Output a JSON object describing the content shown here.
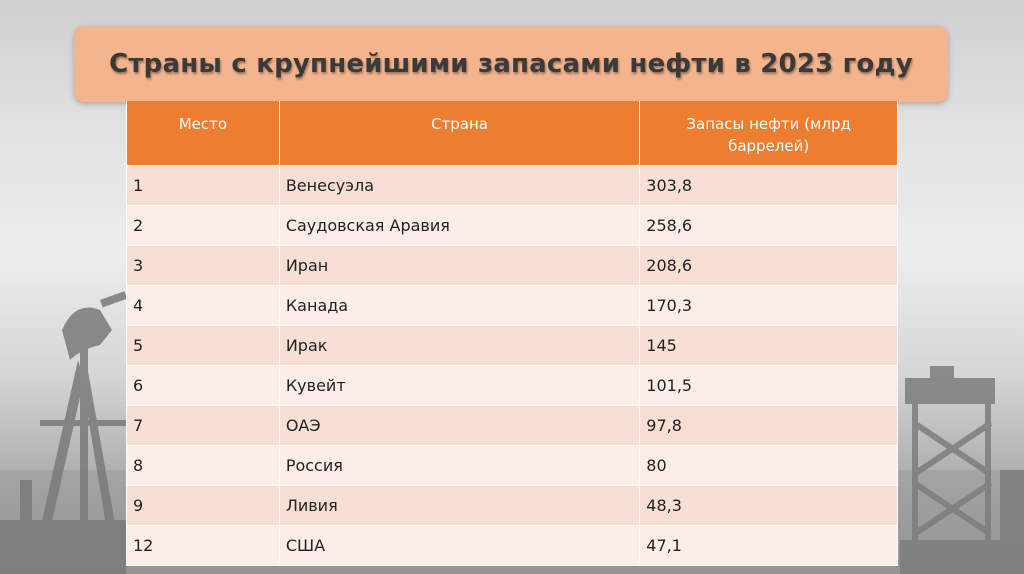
{
  "slide": {
    "title": "Страны с крупнейшими запасами нефти в 2023 году"
  },
  "table": {
    "headers": [
      "Место",
      "Страна",
      "Запасы нефти (млрд баррелей)"
    ],
    "rows": [
      {
        "rank": "1",
        "country": "Венесуэла",
        "reserves": "303,8"
      },
      {
        "rank": "2",
        "country": "Саудовская Аравия",
        "reserves": "258,6"
      },
      {
        "rank": "3",
        "country": "Иран",
        "reserves": "208,6"
      },
      {
        "rank": "4",
        "country": "Канада",
        "reserves": "170,3"
      },
      {
        "rank": "5",
        "country": "Ирак",
        "reserves": "145"
      },
      {
        "rank": "6",
        "country": "Кувейт",
        "reserves": "101,5"
      },
      {
        "rank": "7",
        "country": "ОАЭ",
        "reserves": "97,8"
      },
      {
        "rank": "8",
        "country": "Россия",
        "reserves": "80"
      },
      {
        "rank": "9",
        "country": "Ливия",
        "reserves": "48,3"
      },
      {
        "rank": "12",
        "country": "США",
        "reserves": "47,1"
      }
    ]
  },
  "colors": {
    "title_bg": "#f4b48d",
    "header_bg": "#ed7d31",
    "row_odd": "#f8dfd6",
    "row_even": "#fbeee9"
  }
}
